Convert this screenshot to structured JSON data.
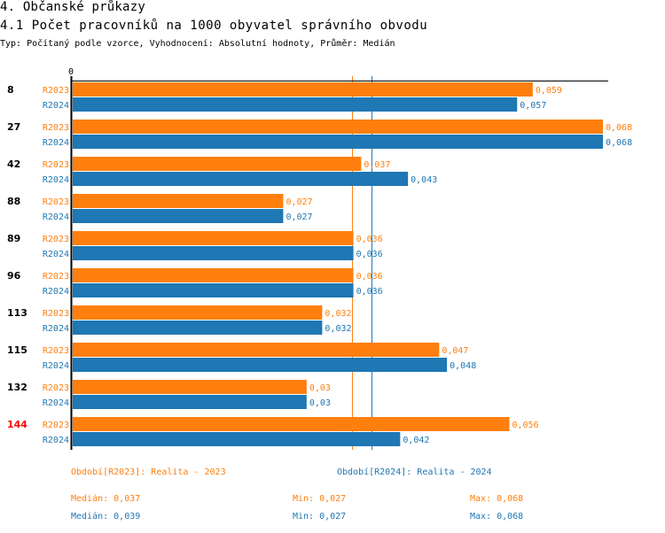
{
  "header": {
    "section_title": "4. Občanské průkazy",
    "chart_title": "4.1 Počet pracovníků na 1000 obyvatel správního obvodu",
    "subtitle": "Typ: Počítaný podle vzorce, Vyhodnocení: Absolutní hodnoty, Průměr: Medián"
  },
  "colors": {
    "r2023": "#ff7f0e",
    "r2024": "#1f77b4",
    "highlight": "#ff0000",
    "axis": "#000000"
  },
  "chart_data": {
    "type": "bar",
    "orientation": "horizontal",
    "title": "4.1 Počet pracovníků na 1000 obyvatel správního obvodu",
    "x_axis_zero_label": "0",
    "xlim": [
      0,
      0.068
    ],
    "categories": [
      "8",
      "27",
      "42",
      "88",
      "89",
      "96",
      "113",
      "115",
      "132",
      "144"
    ],
    "highlighted_category": "144",
    "series": [
      {
        "name": "R2023",
        "legend": "Období[R2023]: Realita - 2023",
        "values": [
          0.059,
          0.068,
          0.037,
          0.027,
          0.036,
          0.036,
          0.032,
          0.047,
          0.03,
          0.056
        ],
        "labels": [
          "0,059",
          "0,068",
          "0,037",
          "0,027",
          "0,036",
          "0,036",
          "0,032",
          "0,047",
          "0,03",
          "0,056"
        ],
        "median": 0.0365
      },
      {
        "name": "R2024",
        "legend": "Období[R2024]: Realita - 2024",
        "values": [
          0.057,
          0.068,
          0.043,
          0.027,
          0.036,
          0.036,
          0.032,
          0.048,
          0.03,
          0.042
        ],
        "labels": [
          "0,057",
          "0,068",
          "0,043",
          "0,027",
          "0,036",
          "0,036",
          "0,032",
          "0,048",
          "0,03",
          "0,042"
        ],
        "median": 0.039
      }
    ]
  },
  "footer": {
    "legend_2023": "Období[R2023]: Realita - 2023",
    "legend_2024": "Období[R2024]: Realita - 2024",
    "stats_2023": {
      "median": "Medián: 0,037",
      "min": "Min: 0,027",
      "max": "Max: 0,068"
    },
    "stats_2024": {
      "median": "Medián: 0,039",
      "min": "Min: 0,027",
      "max": "Max: 0,068"
    }
  }
}
